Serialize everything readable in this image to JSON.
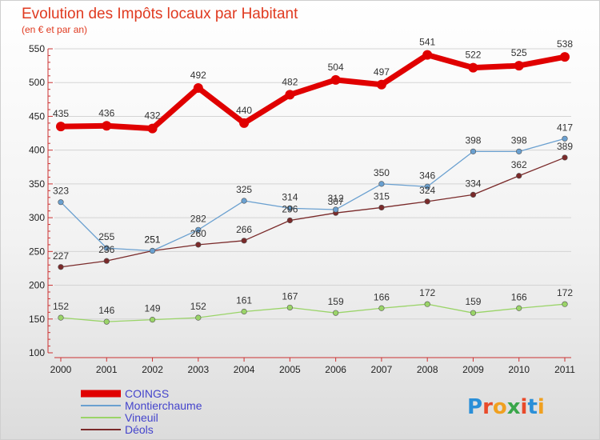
{
  "chart_data": {
    "type": "line",
    "title": "Evolution des Impôts locaux par Habitant",
    "subtitle": "(en € et par an)",
    "categories": [
      "2000",
      "2001",
      "2002",
      "2003",
      "2004",
      "2005",
      "2006",
      "2007",
      "2008",
      "2009",
      "2010",
      "2011"
    ],
    "ylim": [
      100,
      550
    ],
    "yticks": [
      100,
      150,
      200,
      250,
      300,
      350,
      400,
      450,
      500,
      550
    ],
    "grid": "horizontal",
    "legend_position": "bottom-left",
    "series": [
      {
        "name": "COINGS",
        "color": "#e00000",
        "values": [
          435,
          436,
          432,
          492,
          440,
          482,
          504,
          497,
          541,
          522,
          525,
          538
        ]
      },
      {
        "name": "Montierchaume",
        "color": "#6aa0d0",
        "values": [
          323,
          255,
          251,
          282,
          325,
          314,
          312,
          350,
          346,
          398,
          398,
          417
        ]
      },
      {
        "name": "Vineuil",
        "color": "#9ad468",
        "values": [
          152,
          146,
          149,
          152,
          161,
          167,
          159,
          166,
          172,
          159,
          166,
          172
        ]
      },
      {
        "name": "Déols",
        "color": "#7a2a2a",
        "values": [
          227,
          236,
          251,
          260,
          266,
          296,
          307,
          315,
          324,
          334,
          362,
          389
        ]
      }
    ]
  },
  "logo": {
    "text": "Proxiti"
  }
}
